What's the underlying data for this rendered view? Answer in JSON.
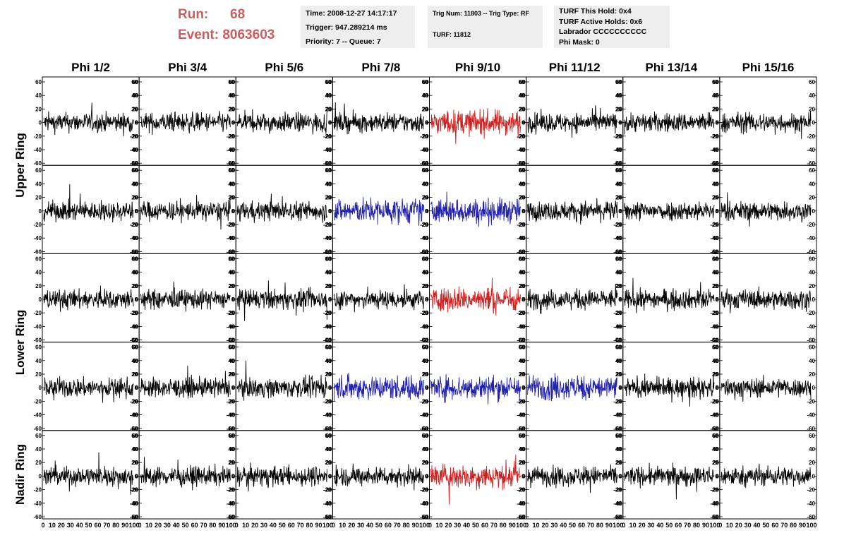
{
  "header": {
    "run_label": "Run:",
    "run_value": "68",
    "event_label": "Event:",
    "event_value": "8063603",
    "time": "Time: 2008-12-27 14:17:17",
    "trigger": "Trigger: 947.289214 ms",
    "priority": "Priority: 7 -- Queue: 7",
    "trig_num": "Trig Num: 11803 -- Trig Type: RF",
    "turf": "TURF: 11812",
    "turf_hold": "TURF This Hold: 0x4",
    "turf_active": "TURF Active Holds: 0x6",
    "labrador": "Labrador CCCCCCCCCC",
    "phi_mask": "Phi Mask: 0"
  },
  "columns": [
    "Phi 1/2",
    "Phi 3/4",
    "Phi 5/6",
    "Phi 7/8",
    "Phi 9/10",
    "Phi 11/12",
    "Phi 13/14",
    "Phi 15/16"
  ],
  "rings": [
    "Upper Ring",
    "Lower Ring",
    "Nadir Ring"
  ],
  "y_ticks": [
    "60",
    "40",
    "20",
    "0",
    "-20",
    "-40",
    "-60"
  ],
  "x_ticks": [
    "0",
    "10",
    "20",
    "30",
    "40",
    "50",
    "60",
    "70",
    "80",
    "90",
    "100"
  ],
  "trace_colors": {
    "normal": "#000000",
    "red": "#cc2222",
    "blue": "#2222aa"
  },
  "highlights": {
    "red": [
      [
        0,
        4
      ],
      [
        2,
        4
      ],
      [
        4,
        4
      ]
    ],
    "blue": [
      [
        1,
        3
      ],
      [
        1,
        4
      ],
      [
        3,
        3
      ],
      [
        3,
        4
      ],
      [
        3,
        5
      ]
    ]
  }
}
